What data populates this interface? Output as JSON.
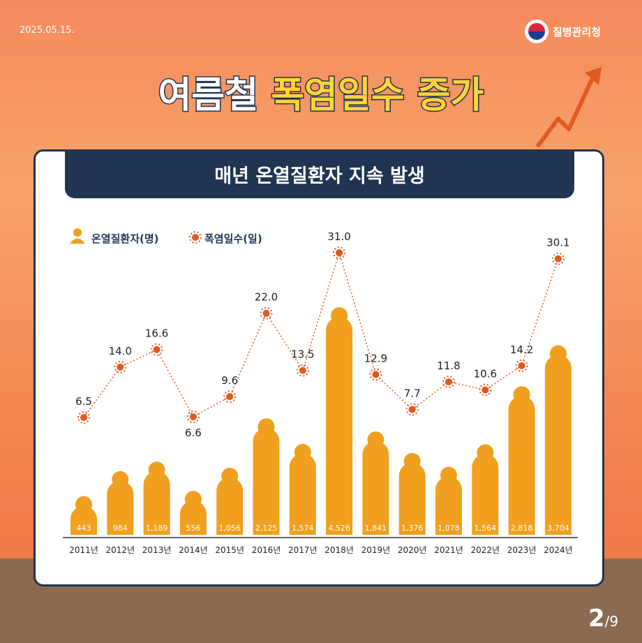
{
  "date": "2025.05.15.",
  "agency": "질병관리청",
  "title": {
    "part1": "여름철",
    "part2": "폭염일수",
    "part3": "증가"
  },
  "subtitle": "매년 온열질환자 지속 발생",
  "page": {
    "current": "2",
    "total": "/9"
  },
  "chart_data": {
    "type": "bar",
    "categories": [
      "2011년",
      "2012년",
      "2013년",
      "2014년",
      "2015년",
      "2016년",
      "2017년",
      "2018년",
      "2019년",
      "2020년",
      "2021년",
      "2022년",
      "2023년",
      "2024년"
    ],
    "series": [
      {
        "name": "온열질환자(명)",
        "type": "bar",
        "values": [
          443,
          984,
          1189,
          556,
          1056,
          2125,
          1574,
          4526,
          1841,
          1376,
          1078,
          1564,
          2818,
          3704
        ],
        "labels": [
          "443",
          "984",
          "1,189",
          "556",
          "1,056",
          "2,125",
          "1,574",
          "4,526",
          "1,841",
          "1,376",
          "1,078",
          "1,564",
          "2,818",
          "3,704"
        ]
      },
      {
        "name": "폭염일수(일)",
        "type": "line",
        "values": [
          6.5,
          14.0,
          16.6,
          6.6,
          9.6,
          22.0,
          13.5,
          31.0,
          12.9,
          7.7,
          11.8,
          10.6,
          14.2,
          30.1
        ],
        "labels": [
          "6.5",
          "14.0",
          "16.6",
          "6.6",
          "9.6",
          "22.0",
          "13.5",
          "31.0",
          "12.9",
          "7.7",
          "11.8",
          "10.6",
          "14.2",
          "30.1"
        ]
      }
    ],
    "colors": {
      "bar": "#f0a01e",
      "line": "#e05a1e"
    },
    "legend": "top-left"
  }
}
